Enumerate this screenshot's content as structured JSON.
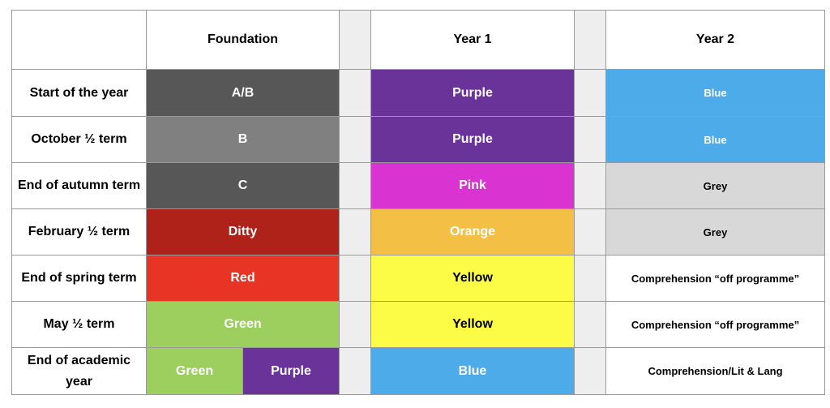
{
  "headers": {
    "corner": "",
    "foundation": "Foundation",
    "year1": "Year 1",
    "year2": "Year 2"
  },
  "colors": {
    "darkgrey": "#575757",
    "midgrey": "#808080",
    "purple": "#6a3399",
    "blue": "#4eabea",
    "pink": "#d933d1",
    "lightgrey": "#d8d8d8",
    "darkred": "#ae2219",
    "orange": "#f4bf45",
    "red": "#e83425",
    "yellow": "#fcfc47",
    "green": "#9ccf5e",
    "white": "#ffffff",
    "spacer": "#eeeeee"
  },
  "rows": [
    {
      "label": "Start of the year",
      "foundation": "A/B",
      "year1": "Purple",
      "year2": "Blue"
    },
    {
      "label": "October ½ term",
      "foundation": "B",
      "year1": "Purple",
      "year2": "Blue"
    },
    {
      "label": "End of autumn term",
      "foundation": "C",
      "year1": "Pink",
      "year2": "Grey"
    },
    {
      "label": "February ½ term",
      "foundation": "Ditty",
      "year1": "Orange",
      "year2": "Grey"
    },
    {
      "label": "End of spring term",
      "foundation": "Red",
      "year1": "Yellow",
      "year2": "Comprehension “off programme”"
    },
    {
      "label": "May ½ term",
      "foundation": "Green",
      "year1": "Yellow",
      "year2": "Comprehension “off programme”"
    },
    {
      "label": "End of academic year",
      "foundation_split": [
        "Green",
        "Purple"
      ],
      "year1": "Blue",
      "year2": "Comprehension/Lit & Lang"
    }
  ]
}
